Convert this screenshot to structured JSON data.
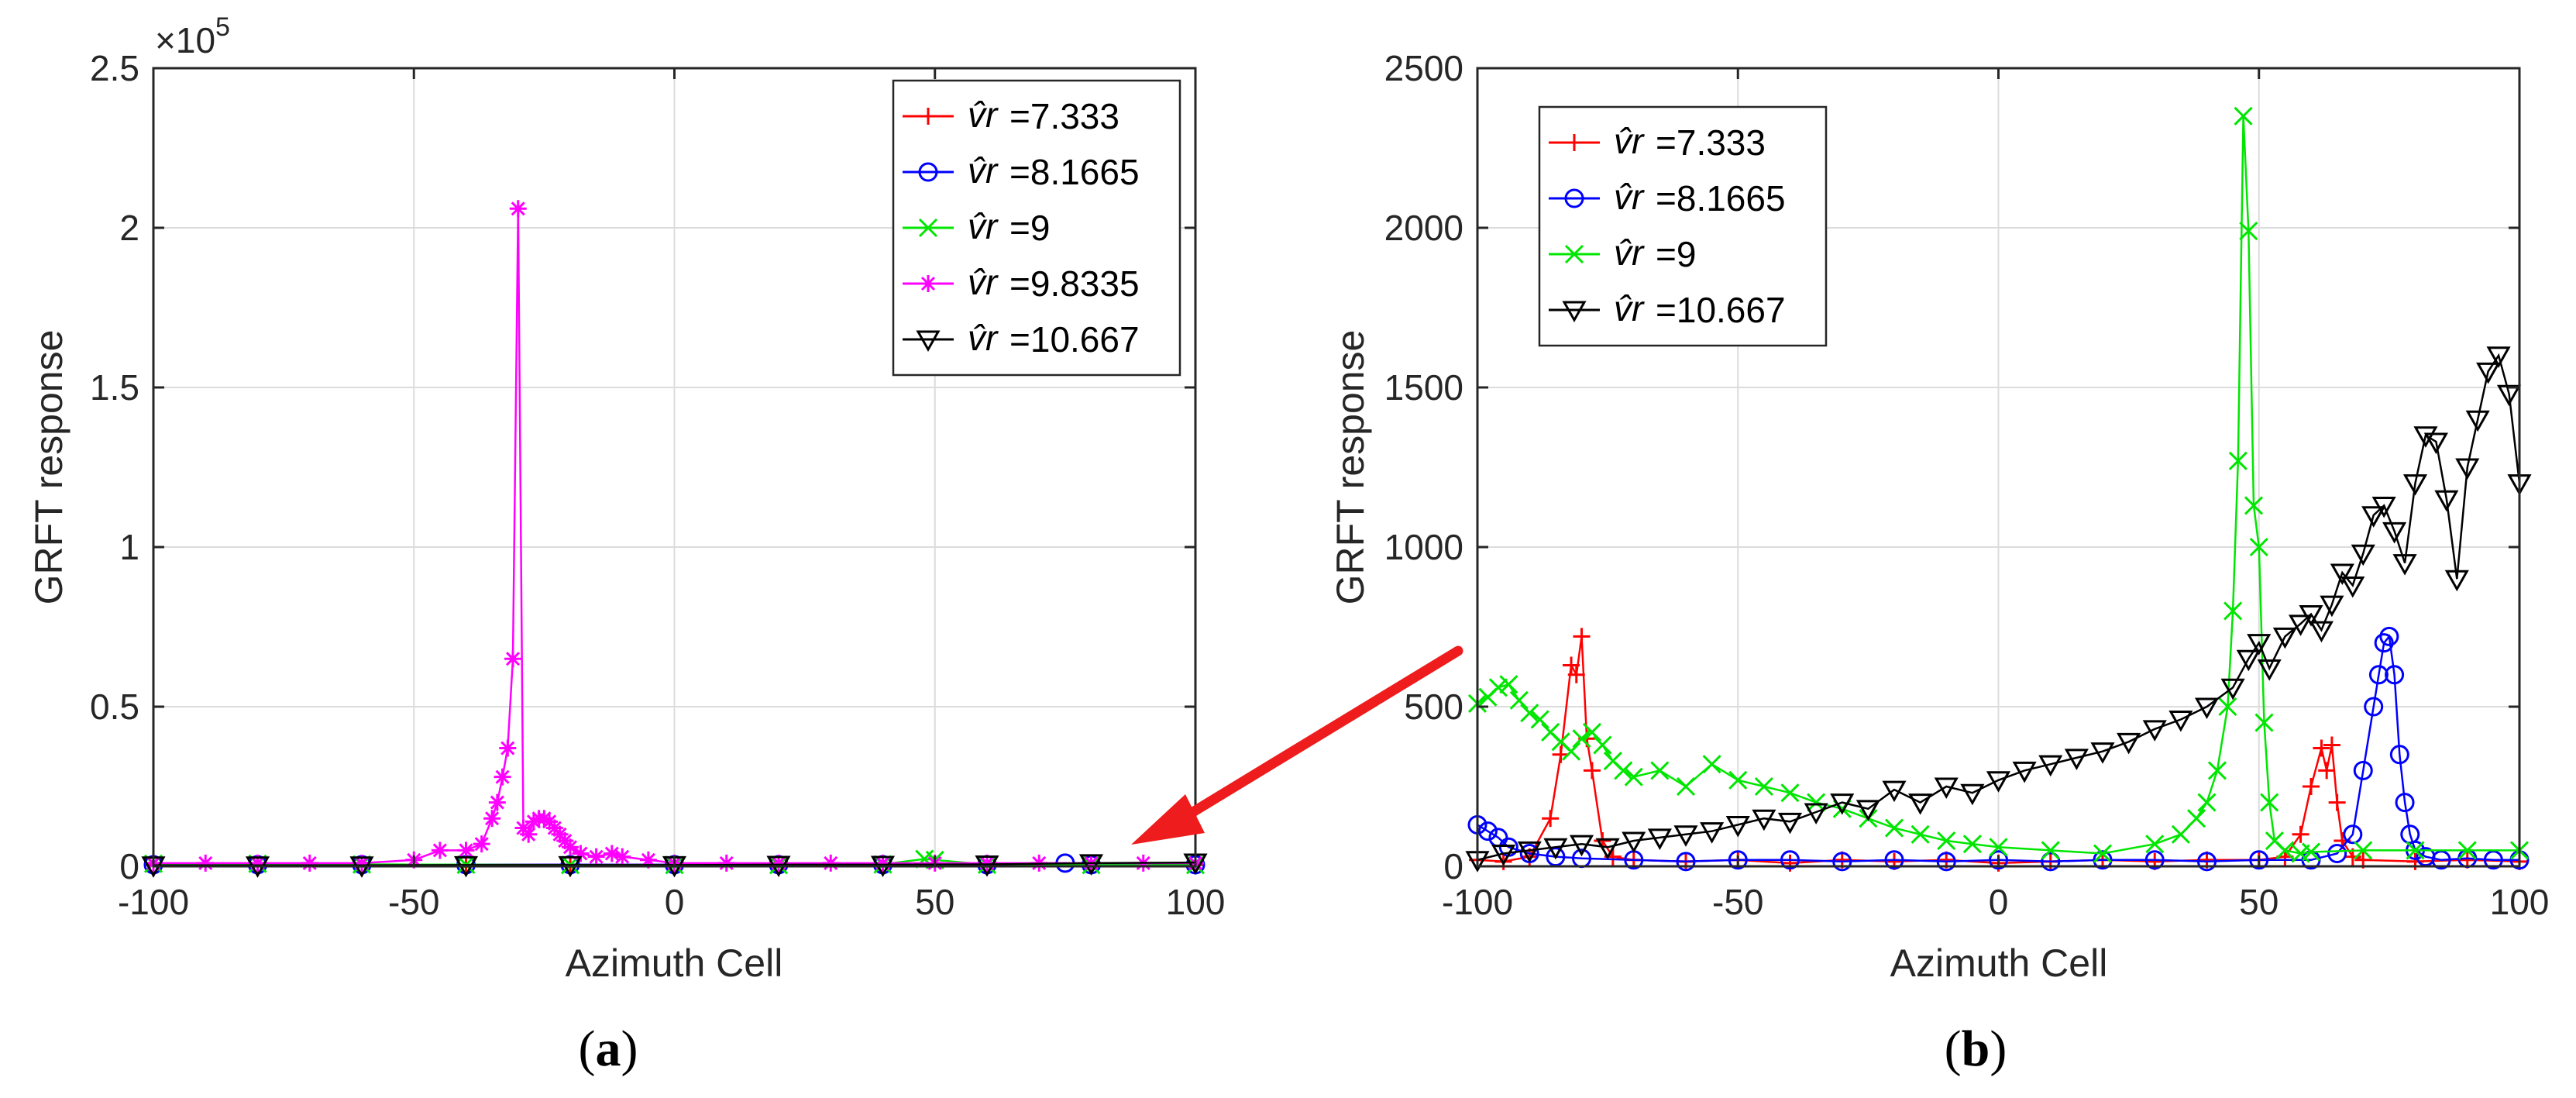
{
  "chart_data": [
    {
      "type": "line",
      "panel": "(a)",
      "caption_open": "(",
      "caption_letter": "a",
      "caption_close": ")",
      "xlabel": "Azimuth Cell",
      "ylabel": "GRFT response",
      "xlim": [
        -100,
        100
      ],
      "ylim": [
        0,
        2.5
      ],
      "y_exponent_label": "×10",
      "y_exponent_power": "5",
      "xticks": [
        -100,
        -50,
        0,
        50,
        100
      ],
      "xtick_labels": [
        "-100",
        "-50",
        "0",
        "50",
        "100"
      ],
      "yticks": [
        0,
        0.5,
        1,
        1.5,
        2,
        2.5
      ],
      "ytick_labels": [
        "0",
        "0.5",
        "1",
        "1.5",
        "2",
        "2.5"
      ],
      "grid": true,
      "legend_position": "top-right",
      "series": [
        {
          "name": "=7.333",
          "symbol": "v̂r",
          "color": "#ff0000",
          "marker": "plus",
          "x": [
            -100,
            -80,
            -60,
            -40,
            -20,
            0,
            20,
            40,
            60,
            80,
            100
          ],
          "y": [
            0.005,
            0.005,
            0.005,
            0.005,
            0.005,
            0.005,
            0.005,
            0.005,
            0.005,
            0.005,
            0.005
          ]
        },
        {
          "name": "=8.1665",
          "symbol": "v̂r",
          "color": "#0000ff",
          "marker": "circle",
          "x": [
            -100,
            -80,
            -60,
            -40,
            -20,
            0,
            20,
            40,
            60,
            75,
            80,
            100
          ],
          "y": [
            0.005,
            0.005,
            0.005,
            0.005,
            0.005,
            0.005,
            0.005,
            0.005,
            0.005,
            0.01,
            0.005,
            0.005
          ]
        },
        {
          "name": "=9",
          "symbol": "v̂r",
          "color": "#00e600",
          "marker": "x",
          "x": [
            -100,
            -80,
            -60,
            -40,
            -20,
            0,
            20,
            40,
            48,
            50,
            60,
            80,
            100
          ],
          "y": [
            0.008,
            0.008,
            0.006,
            0.005,
            0.004,
            0.004,
            0.004,
            0.006,
            0.023,
            0.02,
            0.005,
            0.004,
            0.004
          ]
        },
        {
          "name": "=9.8335",
          "symbol": "v̂r",
          "color": "#ff00ff",
          "marker": "star",
          "x": [
            -100,
            -90,
            -80,
            -70,
            -60,
            -50,
            -45,
            -40,
            -37,
            -35,
            -34,
            -33,
            -32,
            -31,
            -30,
            -29,
            -28,
            -27,
            -26,
            -25,
            -24,
            -23,
            -22,
            -21,
            -20,
            -18,
            -15,
            -12,
            -10,
            -5,
            0,
            10,
            20,
            30,
            40,
            50,
            60,
            70,
            80,
            90,
            100
          ],
          "y": [
            0.01,
            0.01,
            0.01,
            0.01,
            0.01,
            0.02,
            0.05,
            0.05,
            0.07,
            0.15,
            0.2,
            0.28,
            0.37,
            0.65,
            2.06,
            0.12,
            0.1,
            0.14,
            0.15,
            0.15,
            0.14,
            0.12,
            0.1,
            0.08,
            0.06,
            0.04,
            0.03,
            0.04,
            0.03,
            0.02,
            0.01,
            0.01,
            0.01,
            0.01,
            0.01,
            0.01,
            0.01,
            0.01,
            0.01,
            0.01,
            0.01
          ]
        },
        {
          "name": "=10.667",
          "symbol": "v̂r",
          "color": "#000000",
          "marker": "triangle-down",
          "x": [
            -100,
            -80,
            -60,
            -40,
            -20,
            0,
            20,
            40,
            60,
            80,
            100
          ],
          "y": [
            0.003,
            0.003,
            0.003,
            0.004,
            0.004,
            0.004,
            0.005,
            0.005,
            0.006,
            0.01,
            0.012
          ]
        }
      ]
    },
    {
      "type": "line",
      "panel": "(b)",
      "caption_open": "(",
      "caption_letter": "b",
      "caption_close": ")",
      "xlabel": "Azimuth Cell",
      "ylabel": "GRFT response",
      "xlim": [
        -100,
        100
      ],
      "ylim": [
        0,
        2500
      ],
      "xticks": [
        -100,
        -50,
        0,
        50,
        100
      ],
      "xtick_labels": [
        "-100",
        "-50",
        "0",
        "50",
        "100"
      ],
      "yticks": [
        0,
        500,
        1000,
        1500,
        2000,
        2500
      ],
      "ytick_labels": [
        "0",
        "500",
        "1000",
        "1500",
        "2000",
        "2500"
      ],
      "grid": true,
      "legend_position": "top-left",
      "series": [
        {
          "name": "=7.333",
          "symbol": "v̂r",
          "color": "#ff0000",
          "marker": "plus",
          "x": [
            -100,
            -95,
            -90,
            -86,
            -84,
            -82,
            -81,
            -80,
            -79,
            -78,
            -76,
            -74,
            -70,
            -60,
            -50,
            -40,
            -30,
            -20,
            -10,
            0,
            10,
            20,
            30,
            40,
            50,
            55,
            58,
            60,
            62,
            63,
            64,
            65,
            66,
            68,
            70,
            80,
            90,
            100
          ],
          "y": [
            20,
            15,
            30,
            150,
            350,
            630,
            600,
            720,
            400,
            300,
            80,
            30,
            20,
            15,
            20,
            10,
            20,
            15,
            20,
            10,
            15,
            20,
            15,
            20,
            20,
            30,
            100,
            250,
            370,
            300,
            380,
            200,
            80,
            30,
            20,
            15,
            20,
            15
          ]
        },
        {
          "name": "=8.1665",
          "symbol": "v̂r",
          "color": "#0000ff",
          "marker": "circle",
          "x": [
            -100,
            -98,
            -96,
            -94,
            -90,
            -85,
            -80,
            -70,
            -60,
            -50,
            -40,
            -30,
            -20,
            -10,
            0,
            10,
            20,
            30,
            40,
            50,
            60,
            65,
            68,
            70,
            72,
            73,
            74,
            75,
            76,
            77,
            78,
            79,
            80,
            82,
            85,
            90,
            95,
            100
          ],
          "y": [
            130,
            110,
            90,
            60,
            40,
            30,
            25,
            20,
            15,
            20,
            20,
            15,
            20,
            15,
            20,
            15,
            20,
            20,
            15,
            20,
            20,
            40,
            100,
            300,
            500,
            600,
            700,
            720,
            600,
            350,
            200,
            100,
            50,
            30,
            20,
            25,
            20,
            20
          ]
        },
        {
          "name": "=9",
          "symbol": "v̂r",
          "color": "#00e600",
          "marker": "x",
          "x": [
            -100,
            -98,
            -96,
            -94,
            -92,
            -90,
            -88,
            -86,
            -84,
            -82,
            -80,
            -78,
            -76,
            -74,
            -72,
            -70,
            -65,
            -60,
            -55,
            -50,
            -45,
            -40,
            -35,
            -30,
            -25,
            -20,
            -15,
            -10,
            -5,
            0,
            10,
            20,
            30,
            35,
            38,
            40,
            42,
            44,
            45,
            46,
            47,
            48,
            49,
            50,
            51,
            52,
            53,
            55,
            58,
            60,
            70,
            80,
            90,
            100
          ],
          "y": [
            510,
            530,
            560,
            570,
            520,
            480,
            460,
            420,
            390,
            360,
            400,
            420,
            380,
            330,
            300,
            280,
            300,
            250,
            320,
            270,
            250,
            230,
            200,
            180,
            150,
            120,
            100,
            80,
            70,
            60,
            50,
            40,
            70,
            100,
            150,
            200,
            300,
            500,
            800,
            1270,
            2350,
            1990,
            1130,
            1000,
            450,
            200,
            80,
            50,
            40,
            45,
            50,
            50,
            50,
            50
          ]
        },
        {
          "name": "=10.667",
          "symbol": "v̂r",
          "color": "#000000",
          "marker": "triangle-down",
          "x": [
            -100,
            -95,
            -90,
            -85,
            -80,
            -75,
            -70,
            -65,
            -60,
            -55,
            -50,
            -45,
            -40,
            -35,
            -30,
            -25,
            -20,
            -15,
            -10,
            -5,
            0,
            5,
            10,
            15,
            20,
            25,
            30,
            35,
            40,
            45,
            48,
            50,
            52,
            55,
            58,
            60,
            62,
            64,
            66,
            68,
            70,
            72,
            74,
            76,
            78,
            80,
            82,
            84,
            86,
            88,
            90,
            92,
            94,
            96,
            98,
            100
          ],
          "y": [
            20,
            40,
            50,
            60,
            70,
            60,
            80,
            90,
            100,
            110,
            130,
            150,
            140,
            170,
            200,
            180,
            240,
            200,
            250,
            230,
            270,
            300,
            320,
            340,
            360,
            390,
            430,
            460,
            500,
            560,
            650,
            700,
            620,
            720,
            760,
            790,
            740,
            820,
            920,
            880,
            980,
            1100,
            1130,
            1050,
            950,
            1200,
            1350,
            1330,
            1150,
            900,
            1250,
            1400,
            1550,
            1600,
            1480,
            1200
          ]
        }
      ]
    }
  ],
  "arrow": {
    "color": "#ee1c1c"
  }
}
